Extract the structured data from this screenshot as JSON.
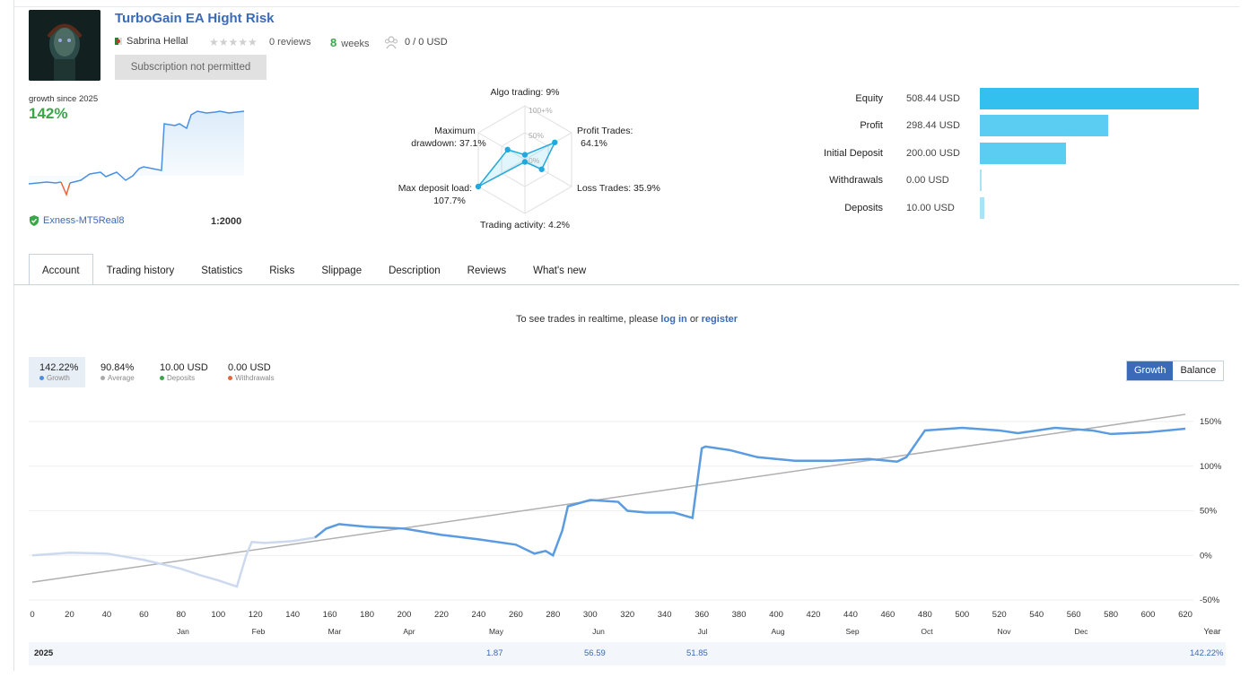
{
  "signal": {
    "title": "TurboGain EA Hight Risk",
    "author": "Sabrina Hellal",
    "reviews": "0 reviews",
    "weeks_value": "8",
    "weeks_label": "weeks",
    "subscribers": "0 / 0 USD",
    "subscription_button": "Subscription not permitted"
  },
  "summary": {
    "growth_since": "growth since 2025",
    "growth_value": "142%",
    "broker": "Exness-MT5Real8",
    "leverage": "1:2000"
  },
  "radar": {
    "axes": [
      {
        "label": "Algo trading: 9%",
        "value": 9
      },
      {
        "label": "Profit Trades:",
        "label2": "64.1%",
        "value": 64.1
      },
      {
        "label": "Loss Trades: 35.9%",
        "value": 35.9
      },
      {
        "label": "Trading activity: 4.2%",
        "value": 4.2
      },
      {
        "label": "Max deposit load:",
        "label2": "107.7%",
        "value": 107.7
      },
      {
        "label": "Maximum",
        "label2": "drawdown: 37.1%",
        "value": 37.1
      }
    ],
    "scale": [
      "100+%",
      "50%",
      "0%"
    ]
  },
  "stats": [
    {
      "label": "Equity",
      "value": "508.44 USD",
      "amount": 508.44
    },
    {
      "label": "Profit",
      "value": "298.44 USD",
      "amount": 298.44
    },
    {
      "label": "Initial Deposit",
      "value": "200.00 USD",
      "amount": 200.0
    },
    {
      "label": "Withdrawals",
      "value": "0.00 USD",
      "amount": 0.0
    },
    {
      "label": "Deposits",
      "value": "10.00 USD",
      "amount": 10.0
    }
  ],
  "tabs": [
    "Account",
    "Trading history",
    "Statistics",
    "Risks",
    "Slippage",
    "Description",
    "Reviews",
    "What's new"
  ],
  "notice": {
    "text": "To see trades in realtime, please",
    "login": "log in",
    "or": "or",
    "register": "register"
  },
  "legend": [
    {
      "value": "142.22%",
      "label": "Growth",
      "color": "#4a90e2"
    },
    {
      "value": "90.84%",
      "label": "Average",
      "color": "#aaaaaa"
    },
    {
      "value": "10.00 USD",
      "label": "Deposits",
      "color": "#3aa64a"
    },
    {
      "value": "0.00 USD",
      "label": "Withdrawals",
      "color": "#e8643c"
    }
  ],
  "toggle": {
    "growth": "Growth",
    "balance": "Balance"
  },
  "chart_data": {
    "type": "line",
    "x_ticks": [
      0,
      20,
      40,
      60,
      80,
      100,
      120,
      140,
      160,
      180,
      200,
      220,
      240,
      260,
      280,
      300,
      320,
      340,
      360,
      380,
      400,
      420,
      440,
      460,
      480,
      500,
      520,
      540,
      560,
      580,
      600,
      620
    ],
    "months": [
      "Jan",
      "Feb",
      "Mar",
      "Apr",
      "May",
      "Jun",
      "Jul",
      "Aug",
      "Sep",
      "Oct",
      "Nov",
      "Dec"
    ],
    "y_ticks": [
      "150%",
      "100%",
      "50%",
      "0%",
      "-50%"
    ],
    "ylim": [
      -50,
      150
    ],
    "xlim": [
      0,
      620
    ],
    "year_label": "Year",
    "series": [
      {
        "name": "Growth",
        "color": "#5b9be0",
        "x": [
          0,
          20,
          40,
          60,
          70,
          80,
          90,
          100,
          110,
          115,
          118,
          125,
          140,
          152,
          158,
          165,
          180,
          200,
          220,
          240,
          260,
          270,
          276,
          280,
          285,
          288,
          300,
          315,
          320,
          330,
          345,
          355,
          360,
          362,
          375,
          390,
          410,
          430,
          450,
          465,
          470,
          480,
          500,
          520,
          530,
          550,
          570,
          580,
          600,
          620
        ],
        "y": [
          0,
          3,
          2,
          -5,
          -10,
          -15,
          -22,
          -28,
          -35,
          0,
          15,
          14,
          16,
          20,
          30,
          35,
          32,
          30,
          23,
          18,
          12,
          2,
          5,
          0,
          28,
          55,
          62,
          60,
          50,
          48,
          48,
          42,
          120,
          122,
          118,
          110,
          106,
          106,
          108,
          105,
          110,
          140,
          143,
          140,
          137,
          143,
          140,
          136,
          138,
          142
        ]
      },
      {
        "name": "Average",
        "color": "#b0b0b0",
        "x": [
          0,
          620
        ],
        "y": [
          -30,
          158
        ]
      }
    ],
    "year_row": {
      "year": "2025",
      "may": "1.87",
      "jun": "56.59",
      "jul": "51.85",
      "total": "142.22%"
    }
  }
}
